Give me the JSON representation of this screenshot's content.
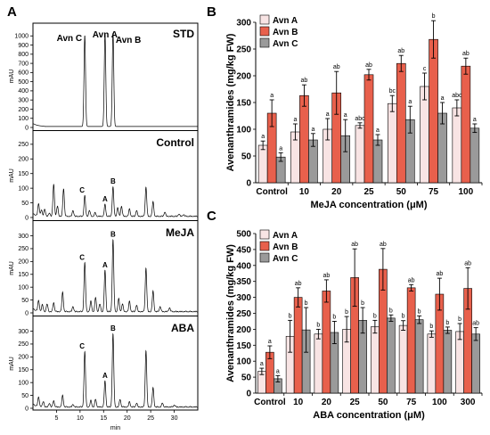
{
  "panel_a": {
    "letter": "A",
    "y_label": "mAU",
    "x_label": "min",
    "x_ticks": [
      "5",
      "10",
      "15",
      "20",
      "25",
      "30"
    ],
    "traces": [
      {
        "name": "STD",
        "y_ticks": [
          "0",
          "100",
          "200",
          "300",
          "400",
          "500",
          "600",
          "700",
          "800",
          "900",
          "1000"
        ],
        "y_max": 1100,
        "peaks": [
          {
            "t": 11.0,
            "h": 1000
          },
          {
            "t": 15.3,
            "h": 1020
          },
          {
            "t": 17.0,
            "h": 1030
          }
        ],
        "labels": [
          {
            "text": "Avn C",
            "t": 11.0
          },
          {
            "text": "Avn A",
            "t": 15.3
          },
          {
            "text": "Avn B",
            "t": 17.0
          }
        ]
      },
      {
        "name": "Control",
        "y_ticks": [
          "0",
          "50",
          "100",
          "150",
          "200",
          "250"
        ],
        "y_max": 280,
        "peaks": [
          {
            "t": 1.2,
            "h": 40
          },
          {
            "t": 1.8,
            "h": 20
          },
          {
            "t": 2.5,
            "h": 25
          },
          {
            "t": 3.5,
            "h": 12
          },
          {
            "t": 4.4,
            "h": 110
          },
          {
            "t": 5.2,
            "h": 35
          },
          {
            "t": 6.5,
            "h": 95
          },
          {
            "t": 8.5,
            "h": 20
          },
          {
            "t": 11.0,
            "h": 70
          },
          {
            "t": 12.0,
            "h": 20
          },
          {
            "t": 13.2,
            "h": 12
          },
          {
            "t": 15.3,
            "h": 40
          },
          {
            "t": 17.0,
            "h": 100
          },
          {
            "t": 18.0,
            "h": 30
          },
          {
            "t": 18.8,
            "h": 35
          },
          {
            "t": 20.5,
            "h": 25
          },
          {
            "t": 22.0,
            "h": 20
          },
          {
            "t": 24.0,
            "h": 100
          },
          {
            "t": 25.5,
            "h": 50
          },
          {
            "t": 28.0,
            "h": 15
          },
          {
            "t": 31.0,
            "h": 8
          },
          {
            "t": 32.0,
            "h": 6
          }
        ],
        "labels": [
          {
            "text": "C",
            "t": 11.0
          },
          {
            "text": "A",
            "t": 15.3
          },
          {
            "text": "B",
            "t": 17.0
          }
        ]
      },
      {
        "name": "MeJA",
        "y_ticks": [
          "0",
          "50",
          "100",
          "150",
          "200",
          "250",
          "300"
        ],
        "y_max": 340,
        "peaks": [
          {
            "t": 1.2,
            "h": 40
          },
          {
            "t": 2.0,
            "h": 25
          },
          {
            "t": 3.0,
            "h": 30
          },
          {
            "t": 4.4,
            "h": 35
          },
          {
            "t": 6.3,
            "h": 75
          },
          {
            "t": 8.5,
            "h": 20
          },
          {
            "t": 11.0,
            "h": 190
          },
          {
            "t": 12.3,
            "h": 40
          },
          {
            "t": 13.3,
            "h": 55
          },
          {
            "t": 14.2,
            "h": 30
          },
          {
            "t": 15.3,
            "h": 160
          },
          {
            "t": 17.0,
            "h": 280
          },
          {
            "t": 18.2,
            "h": 50
          },
          {
            "t": 19.0,
            "h": 30
          },
          {
            "t": 20.5,
            "h": 40
          },
          {
            "t": 22.0,
            "h": 25
          },
          {
            "t": 24.0,
            "h": 170
          },
          {
            "t": 25.5,
            "h": 80
          },
          {
            "t": 27.0,
            "h": 20
          },
          {
            "t": 29.0,
            "h": 15
          }
        ],
        "labels": [
          {
            "text": "C",
            "t": 11.0
          },
          {
            "text": "A",
            "t": 15.3
          },
          {
            "text": "B",
            "t": 17.0
          }
        ]
      },
      {
        "name": "ABA",
        "y_ticks": [
          "0",
          "50",
          "100",
          "150",
          "200",
          "250",
          "300"
        ],
        "y_max": 340,
        "peaks": [
          {
            "t": 1.2,
            "h": 35
          },
          {
            "t": 2.2,
            "h": 20
          },
          {
            "t": 3.5,
            "h": 15
          },
          {
            "t": 4.4,
            "h": 25
          },
          {
            "t": 6.3,
            "h": 45
          },
          {
            "t": 8.5,
            "h": 10
          },
          {
            "t": 11.0,
            "h": 215
          },
          {
            "t": 12.3,
            "h": 25
          },
          {
            "t": 13.3,
            "h": 30
          },
          {
            "t": 15.3,
            "h": 100
          },
          {
            "t": 17.0,
            "h": 285
          },
          {
            "t": 18.5,
            "h": 30
          },
          {
            "t": 20.5,
            "h": 20
          },
          {
            "t": 22.0,
            "h": 15
          },
          {
            "t": 24.0,
            "h": 220
          },
          {
            "t": 25.5,
            "h": 75
          },
          {
            "t": 27.5,
            "h": 15
          },
          {
            "t": 30.0,
            "h": 8
          }
        ],
        "labels": [
          {
            "text": "C",
            "t": 11.0
          },
          {
            "text": "A",
            "t": 15.3
          },
          {
            "text": "B",
            "t": 17.0
          }
        ]
      }
    ]
  },
  "chart_data": [
    {
      "panel": "B",
      "type": "bar",
      "ylabel": "Avenanthramides (mg/kg FW)",
      "xlabel": "MeJA concentration (μM)",
      "ylim": [
        0,
        300
      ],
      "y_ticks": [
        0,
        50,
        100,
        150,
        200,
        250,
        300
      ],
      "categories": [
        "Control",
        "10",
        "20",
        "25",
        "50",
        "75",
        "100"
      ],
      "series": [
        {
          "name": "Avn A",
          "color": "#f8e4e4",
          "values": [
            70,
            95,
            100,
            107,
            148,
            180,
            140
          ],
          "errors": [
            8,
            15,
            20,
            5,
            15,
            25,
            15
          ],
          "labels": [
            "a",
            "a",
            "a",
            "abc",
            "bc",
            "c",
            "abc"
          ]
        },
        {
          "name": "Avn B",
          "color": "#e8604c",
          "values": [
            130,
            163,
            168,
            202,
            223,
            268,
            218
          ],
          "errors": [
            25,
            20,
            40,
            10,
            15,
            35,
            15
          ],
          "labels": [
            "a",
            "ab",
            "ab",
            "ab",
            "ab",
            "b",
            "ab"
          ]
        },
        {
          "name": "Avn C",
          "color": "#9a9a9a",
          "values": [
            48,
            80,
            88,
            80,
            118,
            130,
            102
          ],
          "errors": [
            8,
            12,
            30,
            10,
            25,
            20,
            8
          ],
          "labels": [
            "a",
            "a",
            "a",
            "a",
            "a",
            "a",
            "a"
          ]
        }
      ],
      "legend_position": "top-left"
    },
    {
      "panel": "C",
      "type": "bar",
      "ylabel": "Avenanthramides (mg/kg FW)",
      "xlabel": "ABA concentration (μM)",
      "ylim": [
        0,
        500
      ],
      "y_ticks": [
        0,
        50,
        100,
        150,
        200,
        250,
        300,
        350,
        400,
        450,
        500
      ],
      "categories": [
        "Control",
        "10",
        "20",
        "25",
        "50",
        "75",
        "100",
        "300"
      ],
      "series": [
        {
          "name": "Avn A",
          "color": "#f8e4e4",
          "values": [
            68,
            178,
            185,
            200,
            208,
            212,
            185,
            193
          ],
          "errors": [
            10,
            50,
            15,
            40,
            20,
            15,
            10,
            25
          ],
          "labels": [
            "a",
            "b",
            "b",
            "b",
            "b",
            "b",
            "b",
            "b"
          ]
        },
        {
          "name": "Avn B",
          "color": "#e8604c",
          "values": [
            128,
            300,
            320,
            362,
            388,
            330,
            310,
            328
          ],
          "errors": [
            20,
            30,
            35,
            90,
            65,
            10,
            50,
            65
          ],
          "labels": [
            "a",
            "ab",
            "ab",
            "ab",
            "ab",
            "ab",
            "ab",
            "ab"
          ]
        },
        {
          "name": "Avn C",
          "color": "#9a9a9a",
          "values": [
            45,
            198,
            190,
            228,
            235,
            230,
            197,
            185
          ],
          "errors": [
            10,
            70,
            35,
            40,
            10,
            12,
            10,
            20
          ],
          "labels": [
            "a",
            "b",
            "b",
            "b",
            "b",
            "b",
            "b",
            "ab"
          ]
        }
      ],
      "legend_position": "top-left"
    }
  ]
}
